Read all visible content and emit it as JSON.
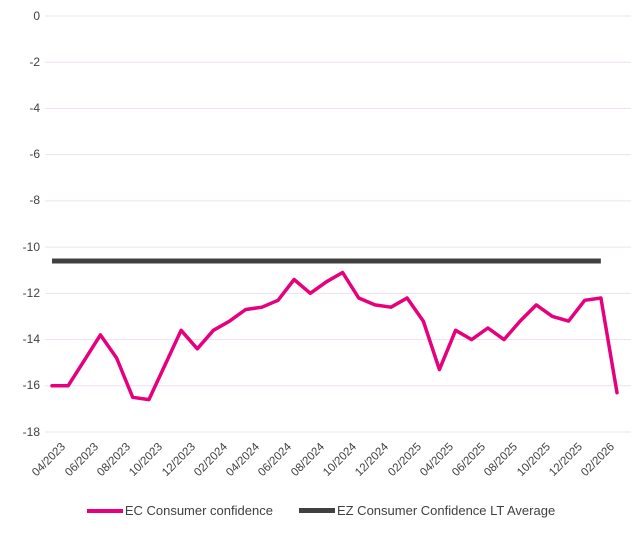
{
  "chart_data": {
    "type": "line",
    "x": [
      "04/2023",
      "05/2023",
      "06/2023",
      "07/2023",
      "08/2023",
      "09/2023",
      "10/2023",
      "11/2023",
      "12/2023",
      "01/2024",
      "02/2024",
      "03/2024",
      "04/2024",
      "05/2024",
      "06/2024",
      "07/2024",
      "08/2024",
      "09/2024",
      "10/2024",
      "11/2024",
      "12/2024",
      "01/2025",
      "02/2025",
      "03/2025",
      "04/2025",
      "05/2025",
      "06/2025",
      "07/2025",
      "08/2025",
      "09/2025",
      "10/2025",
      "11/2025",
      "12/2025",
      "01/2026",
      "02/2026",
      "03/2026"
    ],
    "x_tick_labels": [
      "04/2023",
      "06/2023",
      "08/2023",
      "10/2023",
      "12/2023",
      "02/2024",
      "04/2024",
      "06/2024",
      "08/2024",
      "10/2024",
      "12/2024",
      "02/2025",
      "04/2025",
      "06/2025",
      "08/2025",
      "10/2025",
      "12/2025",
      "02/2026"
    ],
    "x_tick_step": 2,
    "series": [
      {
        "name": "EC Consumer confidence",
        "color": "#E6007E",
        "values": [
          -16.0,
          -16.0,
          -14.9,
          -13.8,
          -14.8,
          -16.5,
          -16.6,
          -15.1,
          -13.6,
          -14.4,
          -13.6,
          -13.2,
          -12.7,
          -12.6,
          -12.3,
          -11.4,
          -12.0,
          -11.5,
          -11.1,
          -12.2,
          -12.5,
          -12.6,
          -12.2,
          -13.2,
          -15.3,
          -13.6,
          -14.0,
          -13.5,
          -14.0,
          -13.2,
          -12.5,
          -13.0,
          -13.2,
          -12.3,
          -12.2,
          -16.3
        ]
      },
      {
        "name": "EZ Consumer Confidence LT Average",
        "color": "#404040",
        "constant_value": -10.6,
        "span_x": [
          "04/2023",
          "02/2026"
        ]
      }
    ],
    "ylim": [
      -18,
      0
    ],
    "yticks": [
      0,
      -2,
      -4,
      -6,
      -8,
      -10,
      -12,
      -14,
      -16,
      -18
    ],
    "grid": "horizontal",
    "gridline_color": "#EFE1EF",
    "legend_position": "bottom"
  },
  "legend": {
    "items": [
      {
        "label": "EC Consumer confidence",
        "color": "#E6007E"
      },
      {
        "label": "EZ Consumer Confidence LT Average",
        "color": "#404040"
      }
    ]
  }
}
